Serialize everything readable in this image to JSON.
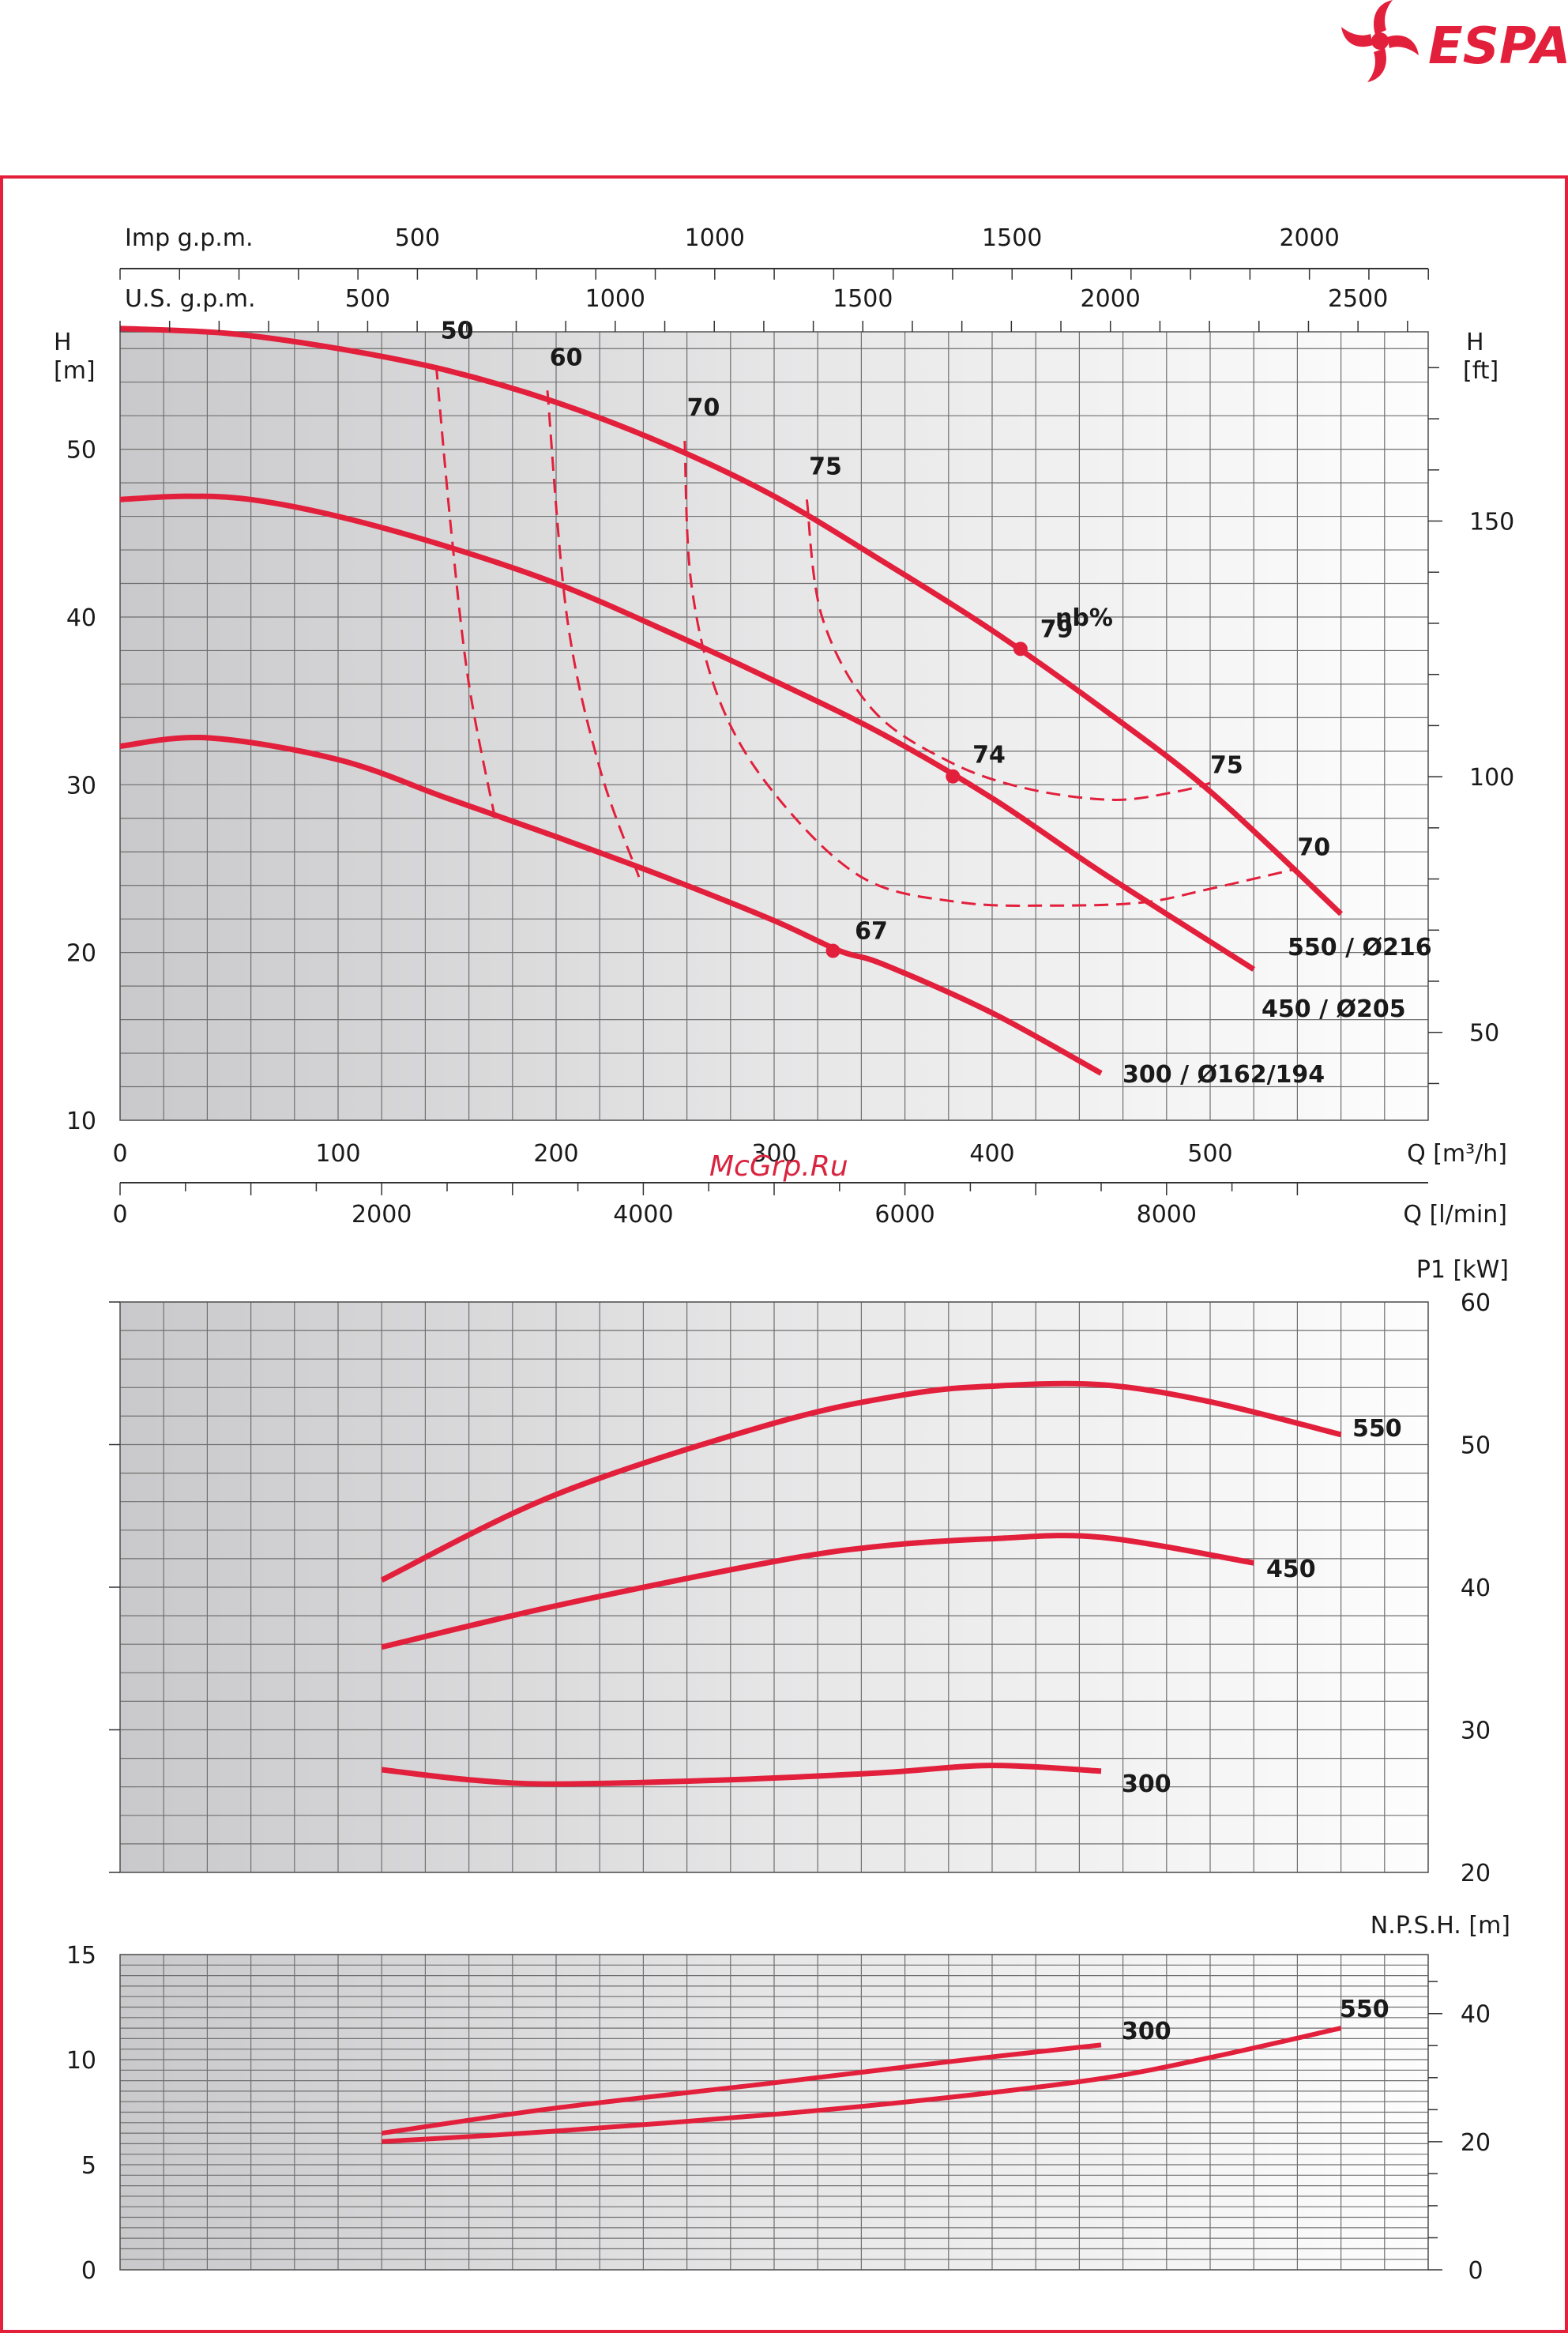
{
  "brand": {
    "name": "ESPA",
    "color": "#e2203c"
  },
  "watermark": "McGrp.Ru",
  "colors": {
    "curve": "#e2203c",
    "frame": "#e2203c",
    "grid": "#6f6f6f",
    "text": "#1a1a1a"
  },
  "chart_data": [
    {
      "id": "head",
      "type": "line",
      "x_unit_label": "Q [m³/h]",
      "xlim": [
        0,
        600
      ],
      "x_ticks": [
        0,
        100,
        200,
        300,
        400,
        500
      ],
      "y_left_label": [
        "H",
        "[m]"
      ],
      "y_right_label": [
        "H",
        "[ft]"
      ],
      "ylim": [
        10,
        57
      ],
      "y_ticks": [
        10,
        20,
        30,
        40,
        50
      ],
      "y_right_ticks": [
        50,
        100,
        150
      ],
      "top_axis_1": {
        "label": "Imp g.p.m.",
        "ticks": [
          500,
          1000,
          1500,
          2000
        ]
      },
      "top_axis_2": {
        "label": "U.S. g.p.m.",
        "ticks": [
          500,
          1000,
          1500,
          2000,
          2500
        ]
      },
      "bottom_axis_2": {
        "label": "Q [l/min]",
        "ticks": [
          0,
          2000,
          4000,
          6000,
          8000
        ]
      },
      "efficiency_label": "ηb%",
      "grid": true,
      "series": [
        {
          "name": "550 / Ø216",
          "x": [
            0,
            50,
            100,
            150,
            200,
            250,
            300,
            350,
            400,
            450,
            500,
            560
          ],
          "y": [
            57.2,
            56.9,
            56,
            54.7,
            52.8,
            50.3,
            47.2,
            43.3,
            39.2,
            34.6,
            29.6,
            22.3
          ]
        },
        {
          "name": "450 / Ø205",
          "x": [
            0,
            30,
            60,
            100,
            150,
            200,
            250,
            300,
            350,
            400,
            450,
            520
          ],
          "y": [
            47,
            47.2,
            47,
            46,
            44.2,
            42,
            39.2,
            36.2,
            33,
            29.2,
            24.8,
            19
          ]
        },
        {
          "name": "300 / Ø162/194",
          "x": [
            0,
            40,
            100,
            150,
            200,
            250,
            300,
            330,
            350,
            400,
            450
          ],
          "y": [
            32.3,
            32.8,
            31.5,
            29.2,
            26.9,
            24.5,
            21.9,
            20.1,
            19.3,
            16.4,
            12.8
          ]
        }
      ],
      "efficiency_curves": [
        {
          "label": "50",
          "x": [
            145,
            152,
            160,
            172
          ],
          "y": [
            55,
            45,
            36,
            28
          ]
        },
        {
          "label": "60",
          "x": [
            196,
            205,
            220,
            238
          ],
          "y": [
            53.5,
            40,
            31,
            24.5
          ]
        },
        {
          "label": "70",
          "x": [
            259,
            262,
            275,
            300,
            340,
            385,
            430,
            470,
            500,
            540
          ],
          "y": [
            50.5,
            42,
            35,
            29.5,
            24.5,
            23,
            22.8,
            23,
            23.8,
            25
          ]
        },
        {
          "label": "75",
          "x": [
            315,
            322,
            345,
            380,
            415,
            455,
            485,
            500
          ],
          "y": [
            47,
            40,
            34.5,
            31.4,
            29.8,
            29.1,
            29.6,
            30.1
          ]
        }
      ],
      "efficiency_points": [
        {
          "label": "79",
          "x": 413,
          "y": 38.1
        },
        {
          "label": "74",
          "x": 382,
          "y": 30.5
        },
        {
          "label": "67",
          "x": 327,
          "y": 20.1
        }
      ],
      "efficiency_texts": [
        {
          "text": "50",
          "x": 147,
          "y": 56.6
        },
        {
          "text": "60",
          "x": 197,
          "y": 55
        },
        {
          "text": "70",
          "x": 260,
          "y": 52
        },
        {
          "text": "75",
          "x": 316,
          "y": 48.5
        },
        {
          "text": "79",
          "x": 422,
          "y": 38.8
        },
        {
          "text": "74",
          "x": 391,
          "y": 31.3
        },
        {
          "text": "67",
          "x": 337,
          "y": 20.8
        },
        {
          "text": "75",
          "x": 500,
          "y": 30.7
        },
        {
          "text": "70",
          "x": 540,
          "y": 25.8
        }
      ]
    },
    {
      "id": "power",
      "type": "line",
      "y_label": "P1 [kW]",
      "xlim": [
        0,
        600
      ],
      "ylim": [
        20,
        60
      ],
      "y_ticks": [
        20,
        30,
        40,
        50,
        60
      ],
      "grid": true,
      "series": [
        {
          "name": "550",
          "x": [
            120,
            200,
            300,
            360,
            400,
            450,
            500,
            560
          ],
          "y": [
            40.5,
            46.5,
            51.5,
            53.5,
            54.1,
            54.2,
            53,
            50.7
          ]
        },
        {
          "name": "450",
          "x": [
            120,
            200,
            300,
            350,
            400,
            450,
            520
          ],
          "y": [
            35.8,
            38.7,
            41.8,
            42.9,
            43.4,
            43.5,
            41.7
          ]
        },
        {
          "name": "300",
          "x": [
            120,
            160,
            200,
            280,
            350,
            400,
            450
          ],
          "y": [
            27.2,
            26.5,
            26.2,
            26.5,
            27,
            27.5,
            27.1
          ]
        }
      ]
    },
    {
      "id": "npsh",
      "type": "line",
      "y_label": "N.P.S.H. [m]",
      "xlim": [
        0,
        600
      ],
      "ylim": [
        0,
        15
      ],
      "y_ticks": [
        0,
        5,
        10,
        15
      ],
      "y_right_ticks": [
        0,
        20,
        40
      ],
      "grid": true,
      "series": [
        {
          "name": "300",
          "x": [
            120,
            200,
            300,
            380,
            450
          ],
          "y": [
            6.5,
            7.7,
            8.9,
            9.9,
            10.7
          ]
        },
        {
          "name": "550",
          "x": [
            120,
            200,
            300,
            380,
            450,
            500,
            560
          ],
          "y": [
            6.1,
            6.6,
            7.4,
            8.2,
            9.1,
            10.1,
            11.5
          ]
        }
      ]
    }
  ]
}
